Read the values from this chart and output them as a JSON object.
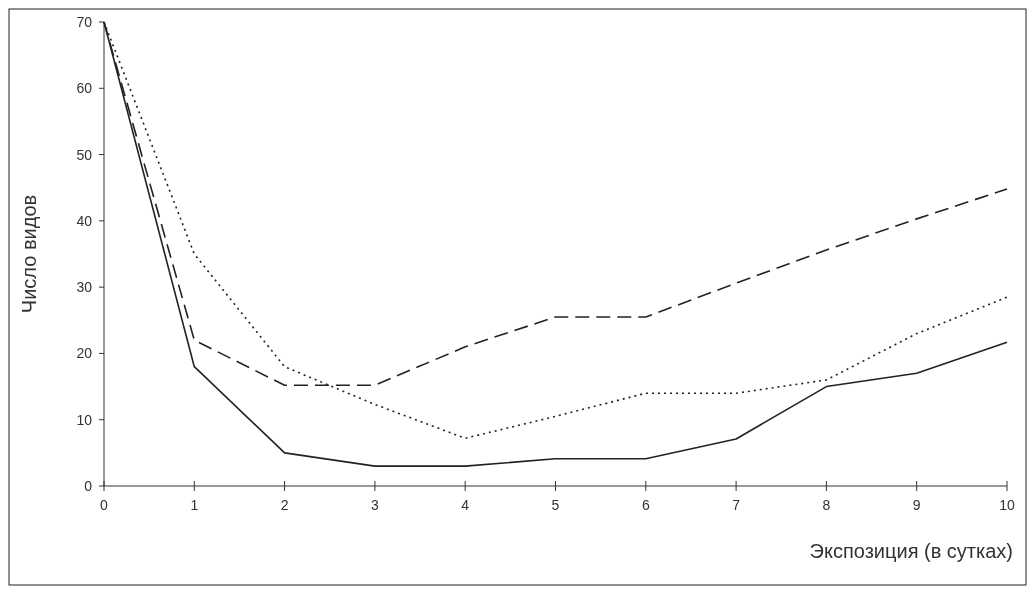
{
  "chart_data": {
    "type": "line",
    "xlabel": "Экспозиция (в сутках)",
    "ylabel": "Число видов",
    "x": [
      0,
      1,
      2,
      3,
      4,
      5,
      6,
      7,
      8,
      9,
      10
    ],
    "xlim": [
      0,
      10
    ],
    "xticks": [
      0,
      1,
      2,
      3,
      4,
      5,
      6,
      7,
      8,
      9,
      10
    ],
    "ylim": [
      0,
      70
    ],
    "yticks": [
      0,
      10,
      20,
      30,
      40,
      50,
      60,
      70
    ],
    "grid": false,
    "series": [
      {
        "color": "#222222",
        "line_style": "solid",
        "values": [
          70,
          18,
          5,
          3,
          3,
          4.1,
          4.1,
          7.1,
          15,
          17,
          21.7
        ]
      },
      {
        "color": "#222222",
        "line_style": "dotted",
        "values": [
          70,
          35,
          18,
          12.3,
          7.2,
          10.5,
          14,
          14,
          16,
          23,
          28.5
        ]
      },
      {
        "color": "#222222",
        "line_style": "dashed",
        "values": [
          70,
          22,
          15.2,
          15.2,
          21,
          25.5,
          25.5,
          30.6,
          35.6,
          40.3,
          44.8
        ]
      }
    ]
  }
}
